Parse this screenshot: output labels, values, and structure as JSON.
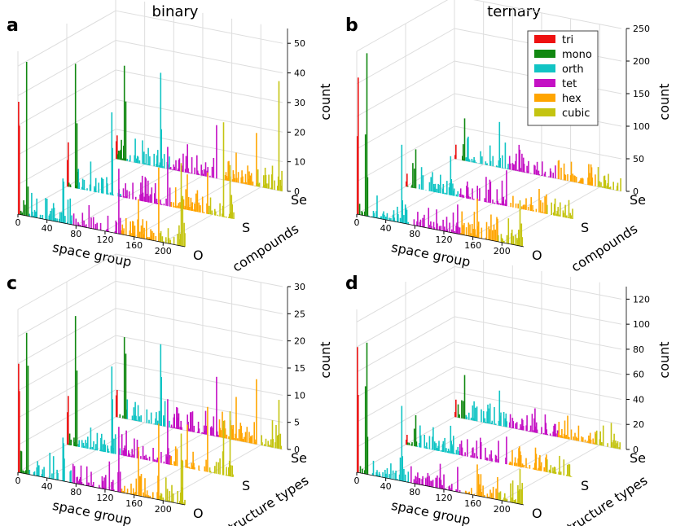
{
  "column_titles": [
    "binary",
    "ternary"
  ],
  "legend": [
    {
      "label": "tri",
      "color": "#ee1111"
    },
    {
      "label": "mono",
      "color": "#118811"
    },
    {
      "label": "orth",
      "color": "#11c4c4"
    },
    {
      "label": "tet",
      "color": "#c411c4"
    },
    {
      "label": "hex",
      "color": "#ffa500"
    },
    {
      "label": "cubic",
      "color": "#c4c411"
    }
  ],
  "chart_data": [
    {
      "panel": "a",
      "type": "bar3d",
      "column": "binary",
      "xlabel": "space group",
      "ylabel": "compounds",
      "zlabel": "count",
      "xlim": [
        0,
        230
      ],
      "xticks": [
        "0",
        "40",
        "80",
        "120",
        "160",
        "200"
      ],
      "y_categories": [
        "O",
        "S",
        "Se"
      ],
      "zlim": [
        0,
        55
      ],
      "zticks": [
        "0",
        "10",
        "20",
        "30",
        "40",
        "50"
      ],
      "series": [
        {
          "name": "O",
          "peaks": [
            [
              1,
              38
            ],
            [
              2,
              30
            ],
            [
              12,
              52
            ],
            [
              14,
              10
            ],
            [
              62,
              15
            ],
            [
              63,
              14
            ],
            [
              139,
              22
            ],
            [
              166,
              13
            ],
            [
              194,
              25
            ],
            [
              225,
              28
            ],
            [
              227,
              17
            ],
            [
              229,
              8
            ]
          ]
        },
        {
          "name": "S",
          "peaks": [
            [
              1,
              9
            ],
            [
              2,
              15
            ],
            [
              12,
              42
            ],
            [
              14,
              22
            ],
            [
              33,
              10
            ],
            [
              62,
              28
            ],
            [
              63,
              16
            ],
            [
              139,
              20
            ],
            [
              166,
              12
            ],
            [
              194,
              14
            ],
            [
              216,
              32
            ],
            [
              225,
              18
            ],
            [
              227,
              8
            ]
          ]
        },
        {
          "name": "Se",
          "peaks": [
            [
              1,
              6
            ],
            [
              2,
              8
            ],
            [
              12,
              32
            ],
            [
              14,
              20
            ],
            [
              62,
              32
            ],
            [
              63,
              13
            ],
            [
              139,
              18
            ],
            [
              166,
              10
            ],
            [
              194,
              18
            ],
            [
              216,
              8
            ],
            [
              225,
              37
            ]
          ]
        }
      ]
    },
    {
      "panel": "b",
      "type": "bar3d",
      "column": "ternary",
      "xlabel": "space group",
      "ylabel": "compounds",
      "zlabel": "count",
      "xlim": [
        0,
        230
      ],
      "xticks": [
        "0",
        "40",
        "80",
        "120",
        "160",
        "200"
      ],
      "y_categories": [
        "O",
        "S",
        "Se"
      ],
      "zlim": [
        0,
        250
      ],
      "zticks": [
        "0",
        "50",
        "100",
        "150",
        "200",
        "250"
      ],
      "series": [
        {
          "name": "O",
          "peaks": [
            [
              1,
              120
            ],
            [
              2,
              210
            ],
            [
              12,
              125
            ],
            [
              14,
              250
            ],
            [
              15,
              60
            ],
            [
              62,
              120
            ],
            [
              63,
              35
            ],
            [
              139,
              45
            ],
            [
              166,
              60
            ],
            [
              194,
              35
            ],
            [
              225,
              70
            ],
            [
              227,
              35
            ]
          ]
        },
        {
          "name": "S",
          "peaks": [
            [
              1,
              8
            ],
            [
              2,
              20
            ],
            [
              12,
              30
            ],
            [
              14,
              60
            ],
            [
              62,
              60
            ],
            [
              63,
              25
            ],
            [
              139,
              55
            ],
            [
              166,
              18
            ],
            [
              194,
              30
            ],
            [
              225,
              28
            ]
          ]
        },
        {
          "name": "Se",
          "peaks": [
            [
              1,
              6
            ],
            [
              2,
              22
            ],
            [
              12,
              25
            ],
            [
              14,
              65
            ],
            [
              62,
              70
            ],
            [
              63,
              15
            ],
            [
              139,
              20
            ],
            [
              166,
              10
            ],
            [
              194,
              18
            ],
            [
              225,
              12
            ]
          ]
        }
      ]
    },
    {
      "panel": "c",
      "type": "bar3d",
      "column": "binary",
      "xlabel": "space group",
      "ylabel": "structure types",
      "zlabel": "count",
      "xlim": [
        0,
        230
      ],
      "xticks": [
        "0",
        "40",
        "80",
        "120",
        "160",
        "200"
      ],
      "y_categories": [
        "O",
        "S",
        "Se"
      ],
      "zlim": [
        0,
        30
      ],
      "zticks": [
        "0",
        "5",
        "10",
        "15",
        "20",
        "25",
        "30"
      ],
      "series": [
        {
          "name": "O",
          "peaks": [
            [
              1,
              20
            ],
            [
              2,
              15
            ],
            [
              12,
              26
            ],
            [
              14,
              20
            ],
            [
              62,
              8
            ],
            [
              63,
              7
            ],
            [
              139,
              12
            ],
            [
              166,
              9
            ],
            [
              194,
              14
            ],
            [
              225,
              13
            ],
            [
              227,
              8
            ]
          ]
        },
        {
          "name": "S",
          "peaks": [
            [
              1,
              6
            ],
            [
              2,
              9
            ],
            [
              12,
              24
            ],
            [
              14,
              14
            ],
            [
              62,
              16
            ],
            [
              63,
              10
            ],
            [
              139,
              12
            ],
            [
              166,
              8
            ],
            [
              194,
              12
            ],
            [
              216,
              10
            ],
            [
              225,
              12
            ]
          ]
        },
        {
          "name": "Se",
          "peaks": [
            [
              1,
              4
            ],
            [
              2,
              5
            ],
            [
              12,
              15
            ],
            [
              14,
              12
            ],
            [
              62,
              15
            ],
            [
              63,
              9
            ],
            [
              139,
              11
            ],
            [
              166,
              8
            ],
            [
              194,
              12
            ],
            [
              216,
              5
            ],
            [
              225,
              9
            ]
          ]
        }
      ]
    },
    {
      "panel": "d",
      "type": "bar3d",
      "column": "ternary",
      "xlabel": "space group",
      "ylabel": "structure types",
      "zlabel": "count",
      "xlim": [
        0,
        230
      ],
      "xticks": [
        "0",
        "40",
        "80",
        "120",
        "160",
        "200"
      ],
      "y_categories": [
        "O",
        "S",
        "Se"
      ],
      "zlim": [
        0,
        130
      ],
      "zticks": [
        "0",
        "20",
        "40",
        "60",
        "80",
        "100",
        "120"
      ],
      "series": [
        {
          "name": "O",
          "peaks": [
            [
              1,
              100
            ],
            [
              2,
              62
            ],
            [
              12,
              70
            ],
            [
              14,
              105
            ],
            [
              15,
              30
            ],
            [
              62,
              60
            ],
            [
              63,
              20
            ],
            [
              139,
              20
            ],
            [
              166,
              25
            ],
            [
              194,
              18
            ],
            [
              225,
              28
            ],
            [
              227,
              12
            ]
          ]
        },
        {
          "name": "S",
          "peaks": [
            [
              1,
              4
            ],
            [
              2,
              8
            ],
            [
              12,
              14
            ],
            [
              14,
              25
            ],
            [
              62,
              22
            ],
            [
              63,
              10
            ],
            [
              139,
              22
            ],
            [
              166,
              8
            ],
            [
              194,
              14
            ],
            [
              225,
              10
            ]
          ]
        },
        {
          "name": "Se",
          "peaks": [
            [
              1,
              4
            ],
            [
              2,
              14
            ],
            [
              12,
              14
            ],
            [
              14,
              35
            ],
            [
              62,
              28
            ],
            [
              63,
              8
            ],
            [
              139,
              10
            ],
            [
              166,
              6
            ],
            [
              194,
              10
            ],
            [
              225,
              6
            ]
          ]
        }
      ]
    }
  ]
}
